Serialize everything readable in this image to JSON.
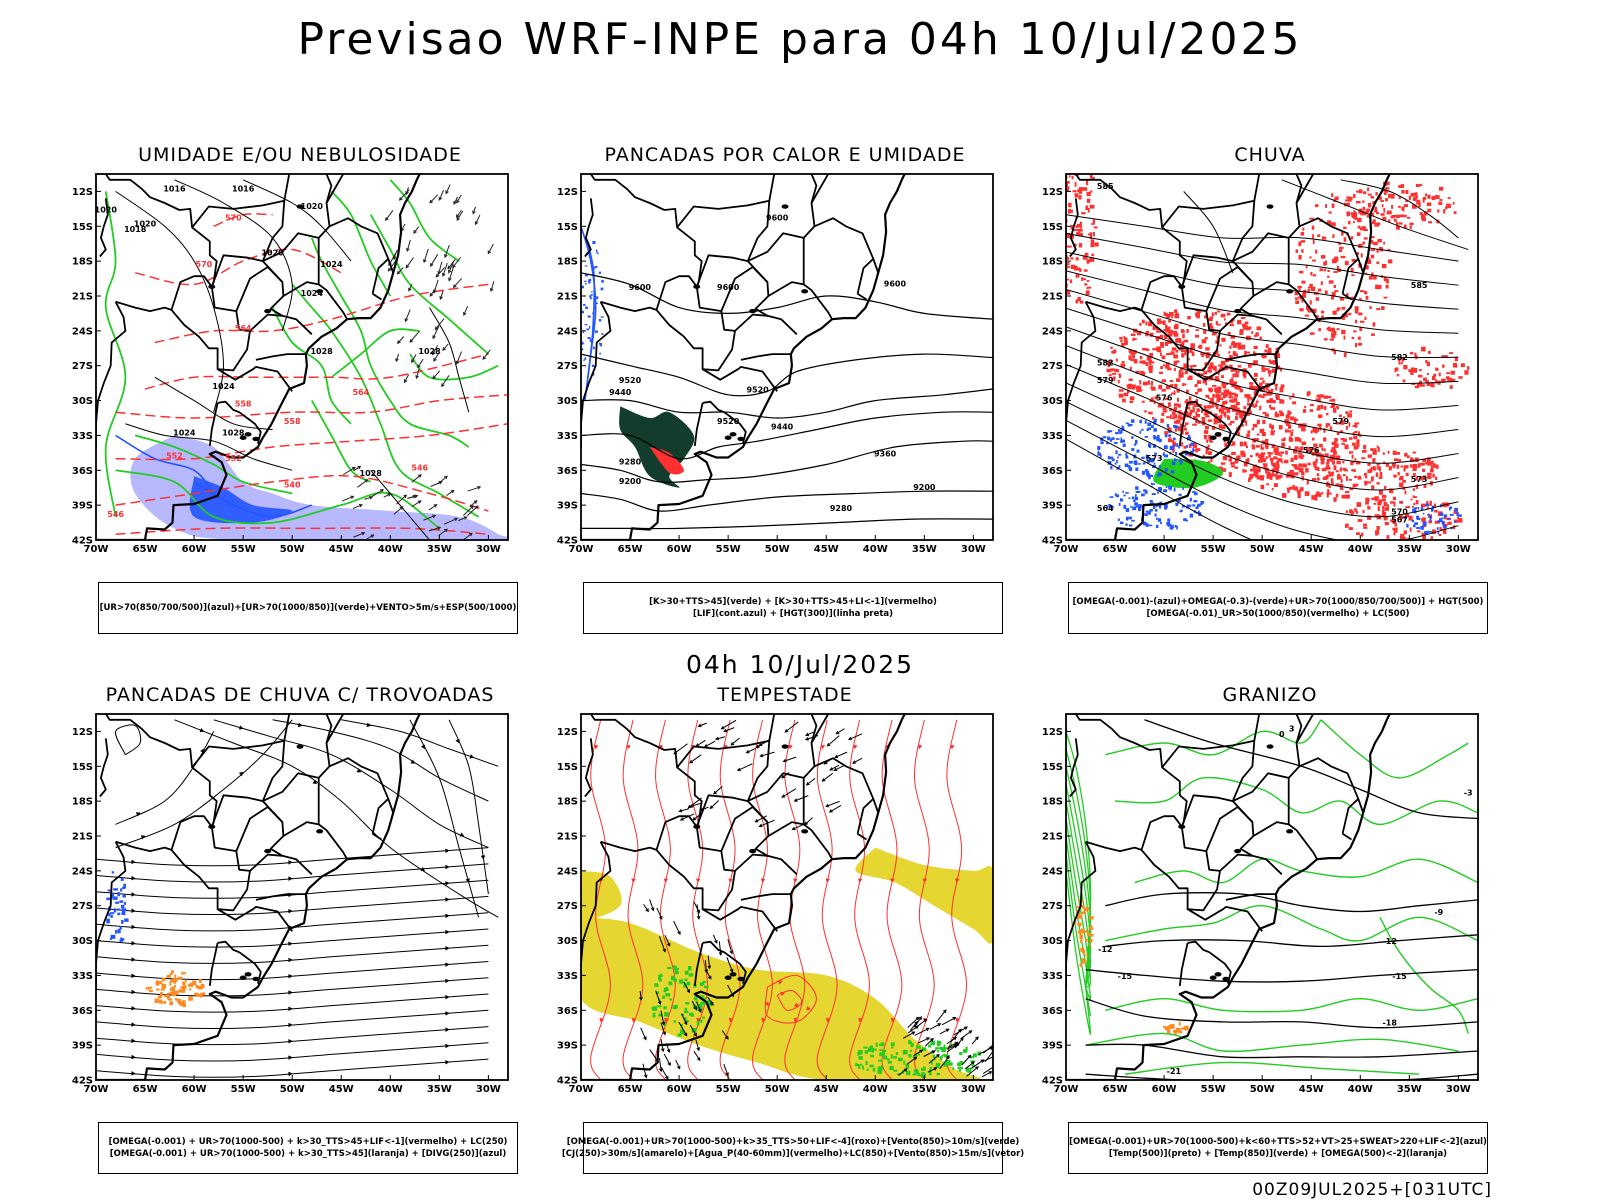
{
  "title": "Previsao WRF-INPE  para 04h 10/Jul/2025",
  "mid_title": "04h 10/Jul/2025",
  "footer": "00Z09JUL2025+[031UTC]",
  "axes": {
    "lat_labels": [
      "12S",
      "15S",
      "18S",
      "21S",
      "24S",
      "27S",
      "30S",
      "33S",
      "36S",
      "39S",
      "42S"
    ],
    "lon_labels": [
      "70W",
      "65W",
      "60W",
      "55W",
      "50W",
      "45W",
      "40W",
      "35W",
      "30W"
    ]
  },
  "panels": [
    {
      "title": "UMIDADE E/OU NEBULOSIDADE",
      "legend": [
        "[UR>70(850/700/500)](azul)+[UR>70(1000/850)](verde)+VENTO>5m/s+ESP(500/1000)"
      ],
      "labels": [
        "1016",
        "1016",
        "1020",
        "1020",
        "1018",
        "1020",
        "1024",
        "1020",
        "1024",
        "1028",
        "1028",
        "1024",
        "1024",
        "1028",
        "1028",
        "570",
        "570",
        "564",
        "558",
        "552",
        "546",
        "540",
        "546",
        "552",
        "564",
        "558"
      ]
    },
    {
      "title": "PANCADAS POR CALOR E UMIDADE",
      "legend": [
        "[K>30+TTS>45](verde) + [K>30+TTS>45+LI<-1](vermelho)",
        "[LIF](cont.azul) + [HGT(300)](linha preta)"
      ],
      "labels": [
        "9600",
        "9600",
        "9600",
        "9600",
        "9520",
        "9440",
        "9520",
        "9520",
        "9440",
        "9360",
        "9280",
        "9200",
        "9280",
        "9200"
      ]
    },
    {
      "title": "CHUVA",
      "legend": [
        "[OMEGA(-0.001)-(azul)+OMEGA(-0.3)-(verde)+UR>70(1000/850/700/500)] + HGT(500)",
        "[OMEGA(-0.01)_UR>50(1000/850)(vermelho) + LC(500)"
      ],
      "labels": [
        "585",
        "585",
        "582",
        "579",
        "576",
        "573",
        "570",
        "567",
        "564",
        "582",
        "579",
        "576",
        "573"
      ]
    },
    {
      "title": "PANCADAS DE CHUVA C/ TROVOADAS",
      "legend": [
        "[OMEGA(-0.001) + UR>70(1000-500) + k>30_TTS>45+LIF<-1](vermelho) + LC(250)",
        "[OMEGA(-0.001) + UR>70(1000-500) + k>30_TTS>45](laranja) + [DIVG(250)](azul)"
      ],
      "labels": []
    },
    {
      "title": "TEMPESTADE",
      "legend": [
        "[OMEGA(-0.001)+UR>70(1000-500)+k>35_TTS>50+LIF<-4](roxo)+[Vento(850)>10m/s](verde)",
        "[CJ(250)>30m/s](amarelo)+[Agua_P(40-60mm)](vermelho)+LC(850)+[Vento(850)>15m/s](vetor)"
      ],
      "labels": []
    },
    {
      "title": "GRANIZO",
      "legend": [
        "[OMEGA(-0.001)+UR>70(1000-500)+k<60+TTS>52+VT>25+SWEAT>220+LIF<-2](azul)",
        "[Temp(500)](preto) + [Temp(850)](verde) + [OMEGA(500)<-2](laranja)"
      ],
      "labels": [
        "-3",
        "-9",
        "-12",
        "-12",
        "-15",
        "-15",
        "-18",
        "-21",
        "0",
        "3"
      ]
    }
  ],
  "colors": {
    "red": "#ff3030",
    "green": "#22cc22",
    "blue": "#2255ff",
    "lavender": "#b0b0ff",
    "yellow": "#e6d631",
    "dark_teal": "#123c2c",
    "orange": "#ff8a20",
    "black": "#000000"
  }
}
